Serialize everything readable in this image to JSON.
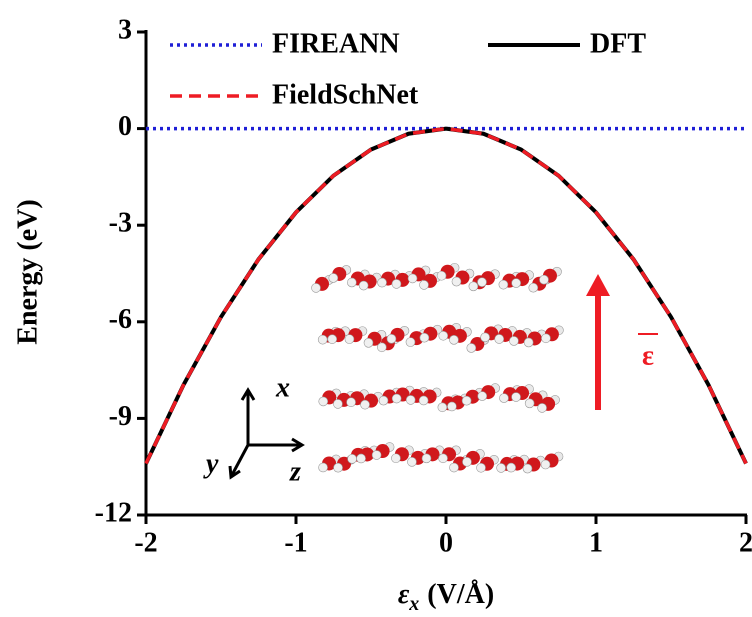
{
  "chart_data": {
    "type": "line",
    "y_label": "Energy (eV)",
    "x_label": {
      "symbol": "ε",
      "subscript": "x",
      "unit": "(V/Å)"
    },
    "x": [
      -2,
      -1.75,
      -1.5,
      -1.25,
      -1,
      -0.75,
      -0.5,
      -0.25,
      0,
      0.25,
      0.5,
      0.75,
      1,
      1.25,
      1.5,
      1.75,
      2
    ],
    "series": [
      {
        "name": "FIREANN",
        "color": "#1f1fd6",
        "style": "dotted",
        "values": [
          0,
          0,
          0,
          0,
          0,
          0,
          0,
          0,
          0,
          0,
          0,
          0,
          0,
          0,
          0,
          0,
          0
        ]
      },
      {
        "name": "DFT",
        "color": "#000000",
        "style": "solid",
        "values": [
          -10.4,
          -7.96,
          -5.85,
          -4.06,
          -2.6,
          -1.46,
          -0.65,
          -0.16,
          0,
          -0.16,
          -0.65,
          -1.46,
          -2.6,
          -4.06,
          -5.85,
          -7.96,
          -10.4
        ]
      },
      {
        "name": "FieldSchNet",
        "color": "#ee1c24",
        "style": "dashed",
        "values": [
          -10.4,
          -7.96,
          -5.85,
          -4.06,
          -2.6,
          -1.46,
          -0.65,
          -0.16,
          0,
          -0.16,
          -0.65,
          -1.46,
          -2.6,
          -4.06,
          -5.85,
          -7.96,
          -10.4
        ]
      }
    ],
    "xlim": [
      -2,
      2
    ],
    "xticks": [
      -2,
      -1,
      0,
      1,
      2
    ],
    "ylim": [
      -12,
      3
    ],
    "yticks": [
      -12,
      -9,
      -6,
      -3,
      0,
      3
    ],
    "inset_labels": {
      "axis_x": "x",
      "axis_y": "y",
      "axis_z": "z",
      "field": "ε"
    }
  }
}
